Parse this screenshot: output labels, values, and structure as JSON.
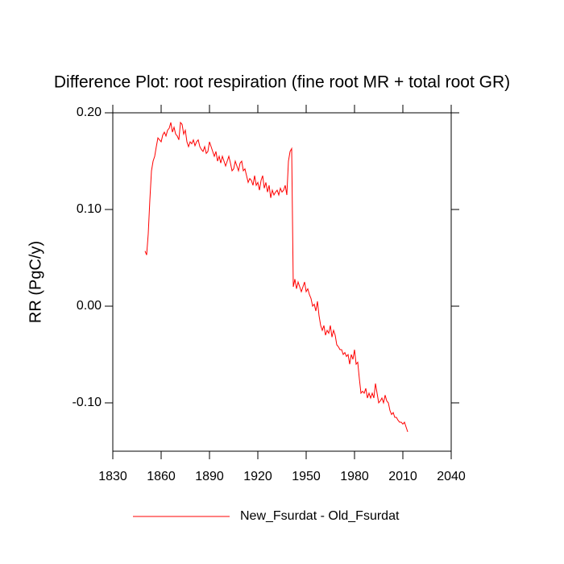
{
  "chart_data": {
    "type": "line",
    "title": "Difference Plot: root respiration (fine root MR + total root GR)",
    "y_label": "RR  (PgC/y)",
    "xlim": [
      1830,
      2040
    ],
    "xticks": [
      1830,
      1860,
      1890,
      1920,
      1950,
      1980,
      2010,
      2040
    ],
    "ylim": [
      -0.15,
      0.2
    ],
    "yticks": [
      {
        "value": -0.1,
        "label": "-0.10"
      },
      {
        "value": 0,
        "label": "0.00"
      },
      {
        "value": 0.1,
        "label": "0.10"
      },
      {
        "value": 0.2,
        "label": "0.20"
      }
    ],
    "x": [
      1850,
      1851,
      1852,
      1853,
      1854,
      1855,
      1856,
      1857,
      1858,
      1859,
      1860,
      1861,
      1862,
      1863,
      1864,
      1865,
      1866,
      1867,
      1868,
      1869,
      1870,
      1871,
      1872,
      1873,
      1874,
      1875,
      1876,
      1877,
      1878,
      1879,
      1880,
      1881,
      1882,
      1883,
      1884,
      1885,
      1886,
      1887,
      1888,
      1889,
      1890,
      1891,
      1892,
      1893,
      1894,
      1895,
      1896,
      1897,
      1898,
      1899,
      1900,
      1901,
      1902,
      1903,
      1904,
      1905,
      1906,
      1907,
      1908,
      1909,
      1910,
      1911,
      1912,
      1913,
      1914,
      1915,
      1916,
      1917,
      1918,
      1919,
      1920,
      1921,
      1922,
      1923,
      1924,
      1925,
      1926,
      1927,
      1928,
      1929,
      1930,
      1931,
      1932,
      1933,
      1934,
      1935,
      1936,
      1937,
      1938,
      1939,
      1940,
      1941,
      1942,
      1943,
      1944,
      1945,
      1946,
      1947,
      1948,
      1949,
      1950,
      1951,
      1952,
      1953,
      1954,
      1955,
      1956,
      1957,
      1958,
      1959,
      1960,
      1961,
      1962,
      1963,
      1964,
      1965,
      1966,
      1967,
      1968,
      1969,
      1970,
      1971,
      1972,
      1973,
      1974,
      1975,
      1976,
      1977,
      1978,
      1979,
      1980,
      1981,
      1982,
      1983,
      1984,
      1985,
      1986,
      1987,
      1988,
      1989,
      1990,
      1991,
      1992,
      1993,
      1994,
      1995,
      1996,
      1997,
      1998,
      1999,
      2000,
      2001,
      2002,
      2003,
      2004,
      2005,
      2006,
      2007,
      2008,
      2009,
      2010,
      2011,
      2012,
      2013
    ],
    "series": [
      {
        "name": "New_Fsurdat - Old_Fsurdat",
        "color": "#ff0000",
        "values": [
          0.057,
          0.053,
          0.075,
          0.11,
          0.14,
          0.15,
          0.155,
          0.165,
          0.174,
          0.172,
          0.17,
          0.177,
          0.18,
          0.176,
          0.182,
          0.184,
          0.19,
          0.18,
          0.185,
          0.178,
          0.176,
          0.172,
          0.19,
          0.188,
          0.178,
          0.182,
          0.17,
          0.165,
          0.17,
          0.168,
          0.172,
          0.166,
          0.17,
          0.172,
          0.165,
          0.162,
          0.16,
          0.165,
          0.158,
          0.16,
          0.17,
          0.165,
          0.16,
          0.155,
          0.16,
          0.15,
          0.155,
          0.148,
          0.155,
          0.15,
          0.145,
          0.15,
          0.155,
          0.148,
          0.14,
          0.142,
          0.15,
          0.145,
          0.14,
          0.148,
          0.15,
          0.14,
          0.142,
          0.135,
          0.128,
          0.132,
          0.13,
          0.125,
          0.135,
          0.125,
          0.128,
          0.12,
          0.13,
          0.135,
          0.122,
          0.128,
          0.118,
          0.125,
          0.112,
          0.12,
          0.115,
          0.118,
          0.12,
          0.115,
          0.122,
          0.118,
          0.12,
          0.125,
          0.115,
          0.15,
          0.16,
          0.163,
          0.02,
          0.028,
          0.018,
          0.025,
          0.02,
          0.015,
          0.02,
          0.025,
          0.015,
          0.018,
          0.012,
          0.008,
          0.0,
          0.002,
          -0.005,
          0.005,
          -0.01,
          -0.02,
          -0.025,
          -0.02,
          -0.03,
          -0.025,
          -0.028,
          -0.02,
          -0.032,
          -0.025,
          -0.03,
          -0.04,
          -0.042,
          -0.045,
          -0.045,
          -0.05,
          -0.048,
          -0.052,
          -0.05,
          -0.06,
          -0.05,
          -0.055,
          -0.045,
          -0.06,
          -0.058,
          -0.075,
          -0.09,
          -0.088,
          -0.09,
          -0.085,
          -0.095,
          -0.09,
          -0.095,
          -0.09,
          -0.095,
          -0.08,
          -0.09,
          -0.1,
          -0.098,
          -0.095,
          -0.1,
          -0.092,
          -0.098,
          -0.1,
          -0.108,
          -0.112,
          -0.11,
          -0.115,
          -0.115,
          -0.118,
          -0.12,
          -0.12,
          -0.122,
          -0.12,
          -0.125,
          -0.13
        ]
      }
    ]
  }
}
